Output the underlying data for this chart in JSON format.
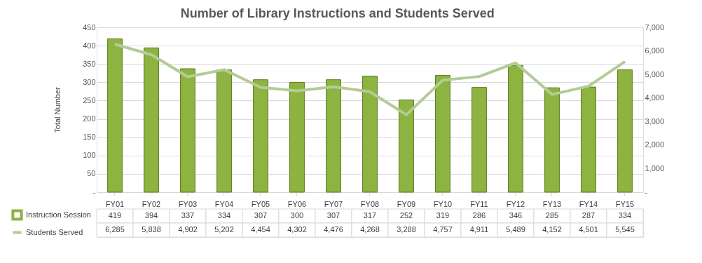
{
  "chart_data": {
    "type": "bar",
    "title": "Number of Library Instructions and Students Served",
    "ylabel": "Total Number",
    "categories": [
      "FY01",
      "FY02",
      "FY03",
      "FY04",
      "FY05",
      "FY06",
      "FY07",
      "FY08",
      "FY09",
      "FY10",
      "FY11",
      "FY12",
      "FY13",
      "FY14",
      "FY15"
    ],
    "series": [
      {
        "name": "Instruction Session",
        "color": "#8db340",
        "values": [
          419,
          394,
          337,
          334,
          307,
          300,
          307,
          317,
          252,
          319,
          286,
          346,
          285,
          287,
          334
        ],
        "value_labels": [
          "419",
          "394",
          "337",
          "334",
          "307",
          "300",
          "307",
          "317",
          "252",
          "319",
          "286",
          "346",
          "285",
          "287",
          "334"
        ]
      },
      {
        "name": "Students Served",
        "type": "line",
        "axis": "y2",
        "color": "#b3cc96",
        "values": [
          6285,
          5838,
          4902,
          5202,
          4454,
          4302,
          4476,
          4268,
          3288,
          4757,
          4911,
          5489,
          4152,
          4501,
          5545
        ],
        "value_labels": [
          "6,285",
          "5,838",
          "4,902",
          "5,202",
          "4,454",
          "4,302",
          "4,476",
          "4,268",
          "3,288",
          "4,757",
          "4,911",
          "5,489",
          "4,152",
          "4,501",
          "5,545"
        ]
      }
    ],
    "ylim": [
      0,
      450
    ],
    "yticks": [
      {
        "value": 0,
        "label": "-"
      },
      50,
      100,
      150,
      200,
      250,
      300,
      350,
      400,
      450
    ],
    "y2lim": [
      0,
      7000
    ],
    "y2ticks": [
      {
        "value": 0,
        "label": "-"
      },
      {
        "value": 1000,
        "label": "1,000"
      },
      {
        "value": 2000,
        "label": "2,000"
      },
      {
        "value": 3000,
        "label": "3,000"
      },
      {
        "value": 4000,
        "label": "4,000"
      },
      {
        "value": 5000,
        "label": "5,000"
      },
      {
        "value": 6000,
        "label": "6,000"
      },
      {
        "value": 7000,
        "label": "7,000"
      }
    ],
    "grid": "y",
    "legend": "bottom left",
    "line_style": "solid",
    "marker": "none"
  }
}
